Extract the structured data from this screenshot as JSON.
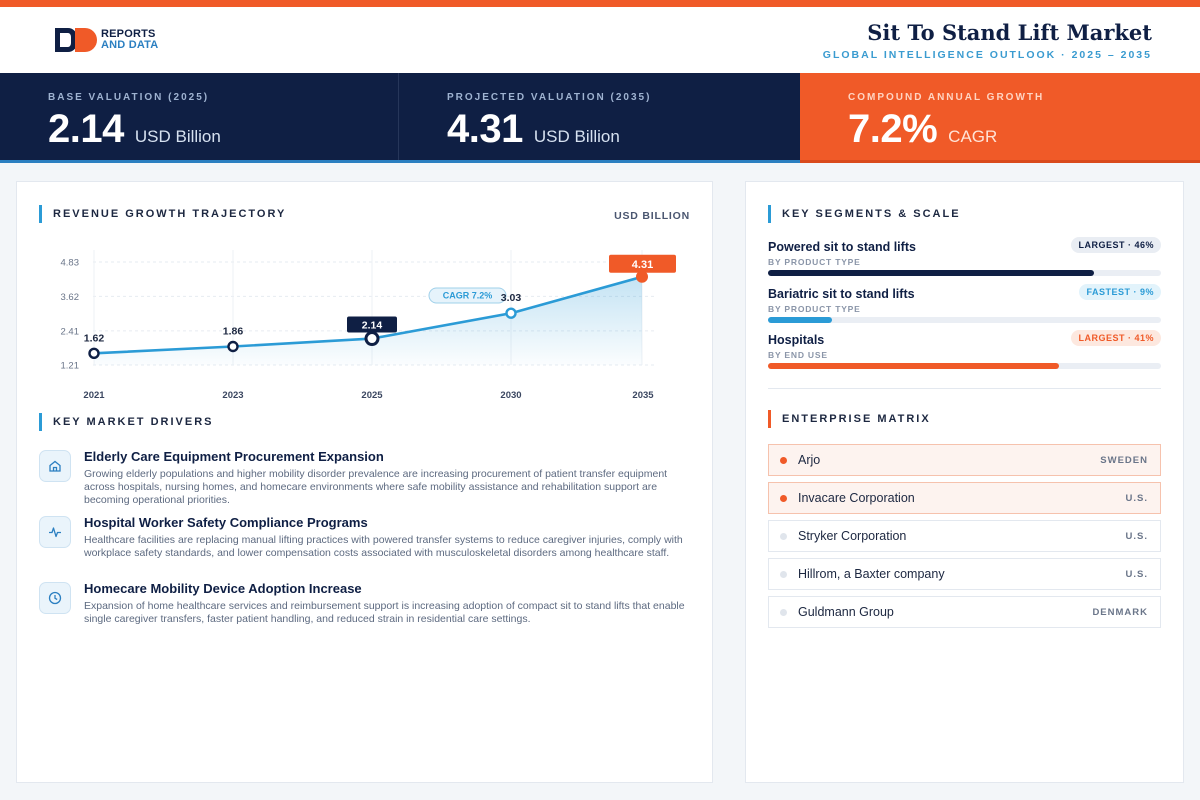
{
  "header": {
    "logo_line1": "REPORTS",
    "logo_line2": "AND DATA",
    "title": "Sit To Stand Lift Market",
    "subtitle": "GLOBAL INTELLIGENCE OUTLOOK  ·  2025 – 2035"
  },
  "kpis": [
    {
      "label": "BASE VALUATION (2025)",
      "value": "2.14",
      "unit": "USD Billion"
    },
    {
      "label": "PROJECTED VALUATION (2035)",
      "value": "4.31",
      "unit": "USD Billion"
    },
    {
      "label": "COMPOUND ANNUAL GROWTH",
      "value": "7.2%",
      "unit": "CAGR"
    }
  ],
  "trajectory": {
    "title": "REVENUE GROWTH TRAJECTORY",
    "unit": "USD BILLION",
    "cagr_label": "CAGR 7.2%"
  },
  "chart_data": {
    "type": "area",
    "title": "REVENUE GROWTH TRAJECTORY",
    "ylabel": "USD BILLION",
    "categories": [
      "2021",
      "2023",
      "2025",
      "2030",
      "2035"
    ],
    "values": [
      1.62,
      1.86,
      2.14,
      3.03,
      4.31
    ],
    "value_labels": [
      "1.62",
      "1.86",
      "2.14",
      "3.03",
      "4.31"
    ],
    "yticks": [
      "4.83",
      "3.62",
      "2.41",
      "1.21"
    ],
    "ytick_values": [
      4.83,
      3.62,
      2.41,
      1.21
    ],
    "ylim": [
      1.21,
      4.83
    ],
    "grid": true,
    "colors": {
      "line": "#2b9bd6",
      "highlight": "#0f1f44",
      "end": "#f05a28"
    }
  },
  "drivers": {
    "title": "KEY MARKET DRIVERS",
    "items": [
      {
        "icon": "home-icon",
        "title": "Elderly Care Equipment Procurement Expansion",
        "desc": "Growing elderly populations and higher mobility disorder prevalence are increasing procurement of patient transfer equipment across hospitals, nursing homes, and homecare environments where safe mobility assistance and rehabilitation support are becoming operational priorities."
      },
      {
        "icon": "pulse-icon",
        "title": "Hospital Worker Safety Compliance Programs",
        "desc": "Healthcare facilities are replacing manual lifting practices with powered transfer systems to reduce caregiver injuries, comply with workplace safety standards, and lower compensation costs associated with musculoskeletal disorders among healthcare staff."
      },
      {
        "icon": "clock-icon",
        "title": "Homecare Mobility Device Adoption Increase",
        "desc": "Expansion of home healthcare services and reimbursement support is increasing adoption of compact sit to stand lifts that enable single caregiver transfers, faster patient handling, and reduced strain in residential care settings."
      }
    ]
  },
  "segments": {
    "title": "KEY SEGMENTS & SCALE",
    "items": [
      {
        "name": "Powered sit to stand lifts",
        "sub": "BY PRODUCT TYPE",
        "badge": "LARGEST · 46%",
        "share": 0.46,
        "color": "#0f1f44"
      },
      {
        "name": "Bariatric sit to stand lifts",
        "sub": "BY PRODUCT TYPE",
        "badge": "FASTEST · 9%",
        "share": 0.09,
        "color": "#2b9bd6"
      },
      {
        "name": "Hospitals",
        "sub": "BY END USE",
        "badge": "LARGEST · 41%",
        "share": 0.41,
        "color": "#f05a28"
      }
    ]
  },
  "enterprise": {
    "title": "ENTERPRISE MATRIX",
    "items": [
      {
        "name": "Arjo",
        "country": "SWEDEN"
      },
      {
        "name": "Invacare Corporation",
        "country": "U.S."
      },
      {
        "name": "Stryker Corporation",
        "country": "U.S."
      },
      {
        "name": "Hillrom, a Baxter company",
        "country": "U.S."
      },
      {
        "name": "Guldmann Group",
        "country": "DENMARK"
      }
    ]
  }
}
